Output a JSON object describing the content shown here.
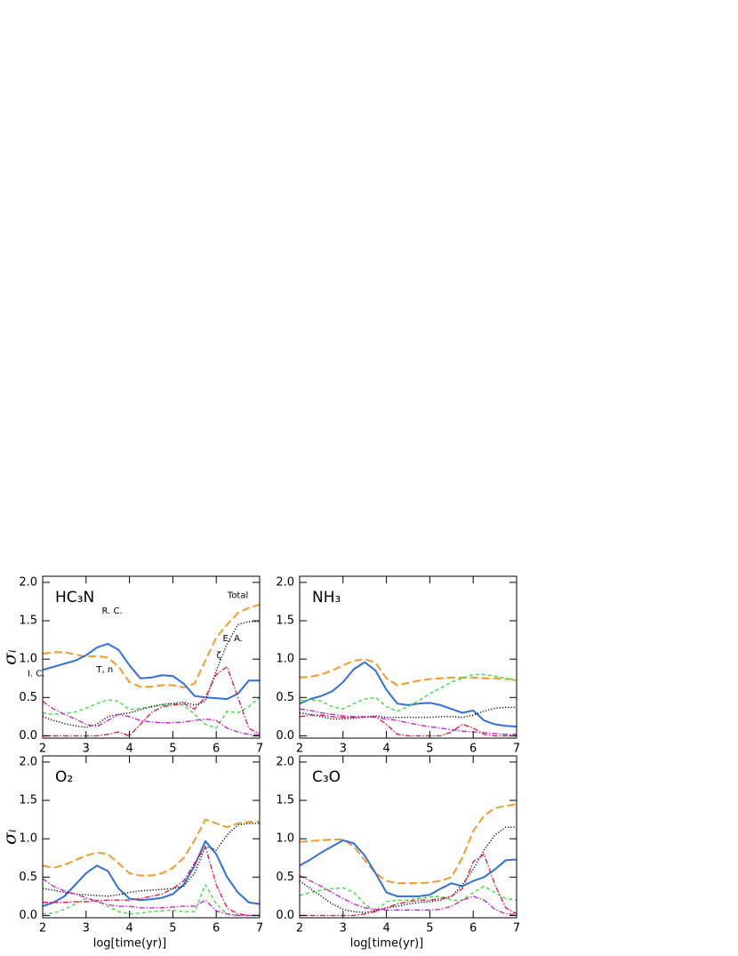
{
  "chart_data": [
    {
      "type": "line",
      "title": "HC₃N",
      "ylabel": "σᵢ",
      "x": [
        2,
        2.25,
        2.5,
        2.75,
        3,
        3.25,
        3.5,
        3.75,
        4,
        4.25,
        4.5,
        4.75,
        5,
        5.25,
        5.5,
        5.75,
        6,
        6.25,
        6.5,
        6.75,
        7
      ],
      "xlim": [
        2,
        7
      ],
      "ylim": [
        -0.03,
        2.08
      ],
      "xticks": [
        2,
        3,
        4,
        5,
        6,
        7
      ],
      "yticks": [
        {
          "value": 0,
          "label": "0.0"
        },
        {
          "value": 0.5,
          "label": "0.5"
        },
        {
          "value": 1,
          "label": "1.0"
        },
        {
          "value": 1.5,
          "label": "1.5"
        },
        {
          "value": 2,
          "label": "2.0"
        }
      ],
      "series": [
        {
          "color": "#f39a2d",
          "linestyle": "dashed",
          "values": [
            1.07,
            1.09,
            1.09,
            1.06,
            1.03,
            1.04,
            1.02,
            0.9,
            0.7,
            0.64,
            0.64,
            0.66,
            0.66,
            0.63,
            0.68,
            0.98,
            1.28,
            1.45,
            1.6,
            1.67,
            1.71
          ]
        },
        {
          "color": "#2f6fde",
          "linestyle": "solid",
          "values": [
            0.86,
            0.9,
            0.94,
            0.98,
            1.05,
            1.15,
            1.2,
            1.12,
            0.92,
            0.75,
            0.76,
            0.79,
            0.78,
            0.68,
            0.52,
            0.5,
            0.49,
            0.48,
            0.55,
            0.72,
            0.72
          ]
        },
        {
          "color": "#3ddc3d",
          "linestyle": "dashed-short",
          "values": [
            0.3,
            0.28,
            0.29,
            0.31,
            0.36,
            0.42,
            0.47,
            0.45,
            0.34,
            0.36,
            0.38,
            0.4,
            0.42,
            0.4,
            0.28,
            0.15,
            0.1,
            0.32,
            0.3,
            0.38,
            0.5
          ]
        },
        {
          "color": "#000000",
          "linestyle": "dotted",
          "values": [
            0.25,
            0.2,
            0.16,
            0.13,
            0.11,
            0.15,
            0.25,
            0.28,
            0.3,
            0.34,
            0.38,
            0.41,
            0.42,
            0.44,
            0.4,
            0.45,
            0.85,
            1.2,
            1.45,
            1.49,
            1.49
          ]
        },
        {
          "color": "#e0204a",
          "linestyle": "dashdot",
          "values": [
            0,
            0,
            0,
            0,
            0,
            0,
            0.02,
            0.05,
            0,
            0.15,
            0.3,
            0.38,
            0.4,
            0.42,
            0.35,
            0.5,
            0.8,
            0.9,
            0.5,
            0.1,
            0.02
          ]
        },
        {
          "color": "#c928d0",
          "linestyle": "dashdot",
          "values": [
            0.45,
            0.35,
            0.28,
            0.22,
            0.15,
            0.12,
            0.2,
            0.28,
            0.25,
            0.2,
            0.18,
            0.17,
            0.17,
            0.18,
            0.2,
            0.22,
            0.2,
            0.1,
            0.05,
            0.02,
            0.01
          ]
        }
      ],
      "annotations": [
        {
          "text": "Total",
          "x": 6.5,
          "y": 1.83
        },
        {
          "text": "R. C.",
          "x": 3.6,
          "y": 1.63
        },
        {
          "text": "T, n",
          "x": 3.43,
          "y": 0.86
        },
        {
          "text": "E. A.",
          "x": 6.38,
          "y": 1.27
        },
        {
          "text": "ζ",
          "x": 6.06,
          "y": 1.05
        },
        {
          "text": "I. C.",
          "x": 1.85,
          "y": 0.81
        }
      ]
    },
    {
      "type": "line",
      "title": "NH₃",
      "x": [
        2,
        2.25,
        2.5,
        2.75,
        3,
        3.25,
        3.5,
        3.75,
        4,
        4.25,
        4.5,
        4.75,
        5,
        5.25,
        5.5,
        5.75,
        6,
        6.25,
        6.5,
        6.75,
        7
      ],
      "xlim": [
        2,
        7
      ],
      "ylim": [
        -0.03,
        2.08
      ],
      "xticks": [
        2,
        3,
        4,
        5,
        6,
        7
      ],
      "yticks": [
        {
          "value": 0,
          "label": "0.0"
        },
        {
          "value": 0.5,
          "label": "0.5"
        },
        {
          "value": 1,
          "label": "1.0"
        },
        {
          "value": 1.5,
          "label": "1.5"
        },
        {
          "value": 2,
          "label": "2.0"
        }
      ],
      "series": [
        {
          "color": "#f39a2d",
          "linestyle": "dashed",
          "values": [
            0.76,
            0.77,
            0.8,
            0.85,
            0.92,
            0.98,
            1.0,
            0.95,
            0.75,
            0.66,
            0.69,
            0.72,
            0.74,
            0.75,
            0.76,
            0.76,
            0.76,
            0.75,
            0.75,
            0.74,
            0.74
          ]
        },
        {
          "color": "#2f6fde",
          "linestyle": "solid",
          "values": [
            0.42,
            0.48,
            0.52,
            0.58,
            0.7,
            0.87,
            0.96,
            0.85,
            0.6,
            0.42,
            0.4,
            0.42,
            0.43,
            0.4,
            0.35,
            0.3,
            0.33,
            0.2,
            0.15,
            0.13,
            0.12
          ]
        },
        {
          "color": "#3ddc3d",
          "linestyle": "dashed-short",
          "values": [
            0.46,
            0.47,
            0.45,
            0.38,
            0.35,
            0.42,
            0.48,
            0.5,
            0.38,
            0.32,
            0.38,
            0.46,
            0.55,
            0.62,
            0.7,
            0.75,
            0.8,
            0.8,
            0.78,
            0.75,
            0.72
          ]
        },
        {
          "color": "#000000",
          "linestyle": "dotted",
          "values": [
            0.3,
            0.28,
            0.25,
            0.22,
            0.22,
            0.23,
            0.24,
            0.26,
            0.24,
            0.24,
            0.24,
            0.24,
            0.24,
            0.25,
            0.25,
            0.24,
            0.27,
            0.32,
            0.36,
            0.37,
            0.37
          ]
        },
        {
          "color": "#e0204a",
          "linestyle": "dashdot",
          "values": [
            0.25,
            0.27,
            0.27,
            0.25,
            0.24,
            0.24,
            0.25,
            0.25,
            0.15,
            0.02,
            0,
            0,
            0,
            0,
            0.05,
            0.15,
            0.1,
            0.02,
            0,
            0,
            0
          ]
        },
        {
          "color": "#c928d0",
          "linestyle": "dashdot",
          "values": [
            0.35,
            0.33,
            0.3,
            0.28,
            0.26,
            0.25,
            0.25,
            0.24,
            0.22,
            0.2,
            0.17,
            0.14,
            0.12,
            0.1,
            0.08,
            0.06,
            0.05,
            0.04,
            0.03,
            0.02,
            0.02
          ]
        }
      ]
    },
    {
      "type": "line",
      "title": "O₂",
      "ylabel": "σᵢ",
      "xlabel": "log[time(yr)]",
      "x": [
        2,
        2.25,
        2.5,
        2.75,
        3,
        3.25,
        3.5,
        3.75,
        4,
        4.25,
        4.5,
        4.75,
        5,
        5.25,
        5.5,
        5.75,
        6,
        6.25,
        6.5,
        6.75,
        7
      ],
      "xlim": [
        2,
        7
      ],
      "ylim": [
        -0.03,
        2.08
      ],
      "xticks": [
        2,
        3,
        4,
        5,
        6,
        7
      ],
      "yticks": [
        {
          "value": 0,
          "label": "0.0"
        },
        {
          "value": 0.5,
          "label": "0.5"
        },
        {
          "value": 1,
          "label": "1.0"
        },
        {
          "value": 1.5,
          "label": "1.5"
        },
        {
          "value": 2,
          "label": "2.0"
        }
      ],
      "series": [
        {
          "color": "#f39a2d",
          "linestyle": "dashed",
          "values": [
            0.65,
            0.62,
            0.66,
            0.72,
            0.78,
            0.82,
            0.8,
            0.68,
            0.55,
            0.52,
            0.52,
            0.55,
            0.62,
            0.75,
            0.98,
            1.25,
            1.2,
            1.15,
            1.2,
            1.22,
            1.22
          ]
        },
        {
          "color": "#2f6fde",
          "linestyle": "solid",
          "values": [
            0.12,
            0.17,
            0.25,
            0.4,
            0.55,
            0.65,
            0.58,
            0.35,
            0.22,
            0.2,
            0.21,
            0.23,
            0.28,
            0.4,
            0.65,
            0.97,
            0.8,
            0.5,
            0.3,
            0.17,
            0.15
          ]
        },
        {
          "color": "#3ddc3d",
          "linestyle": "dashed-short",
          "values": [
            0.02,
            0.03,
            0.08,
            0.15,
            0.22,
            0.2,
            0.12,
            0.05,
            0.02,
            0.03,
            0.05,
            0.06,
            0.07,
            0.05,
            0.05,
            0.4,
            0.15,
            0.02,
            0,
            0,
            0
          ]
        },
        {
          "color": "#000000",
          "linestyle": "dotted",
          "values": [
            0.35,
            0.33,
            0.3,
            0.28,
            0.27,
            0.26,
            0.25,
            0.27,
            0.3,
            0.32,
            0.33,
            0.34,
            0.35,
            0.38,
            0.55,
            0.9,
            0.85,
            1.05,
            1.18,
            1.2,
            1.2
          ]
        },
        {
          "color": "#e0204a",
          "linestyle": "dashdot",
          "values": [
            0.17,
            0.17,
            0.17,
            0.18,
            0.18,
            0.19,
            0.2,
            0.2,
            0.2,
            0.22,
            0.25,
            0.28,
            0.35,
            0.45,
            0.68,
            0.9,
            0.4,
            0.1,
            0.02,
            0,
            0
          ]
        },
        {
          "color": "#c928d0",
          "linestyle": "dashdot",
          "values": [
            0.48,
            0.38,
            0.32,
            0.28,
            0.23,
            0.18,
            0.14,
            0.12,
            0.12,
            0.1,
            0.1,
            0.1,
            0.11,
            0.12,
            0.12,
            0.2,
            0.06,
            0.02,
            0,
            0,
            0
          ]
        }
      ]
    },
    {
      "type": "line",
      "title": "C₃O",
      "xlabel": "log[time(yr)]",
      "x": [
        2,
        2.25,
        2.5,
        2.75,
        3,
        3.25,
        3.5,
        3.75,
        4,
        4.25,
        4.5,
        4.75,
        5,
        5.25,
        5.5,
        5.75,
        6,
        6.25,
        6.5,
        6.75,
        7
      ],
      "xlim": [
        2,
        7
      ],
      "ylim": [
        -0.03,
        2.08
      ],
      "xticks": [
        2,
        3,
        4,
        5,
        6,
        7
      ],
      "yticks": [
        {
          "value": 0,
          "label": "0.0"
        },
        {
          "value": 0.5,
          "label": "0.5"
        },
        {
          "value": 1,
          "label": "1.0"
        },
        {
          "value": 1.5,
          "label": "1.5"
        },
        {
          "value": 2,
          "label": "2.0"
        }
      ],
      "series": [
        {
          "color": "#f39a2d",
          "linestyle": "dashed",
          "values": [
            0.96,
            0.97,
            0.98,
            0.99,
            0.99,
            0.9,
            0.72,
            0.55,
            0.45,
            0.42,
            0.42,
            0.42,
            0.43,
            0.45,
            0.5,
            0.75,
            1.1,
            1.3,
            1.4,
            1.43,
            1.45
          ]
        },
        {
          "color": "#2f6fde",
          "linestyle": "solid",
          "values": [
            0.65,
            0.73,
            0.82,
            0.9,
            0.98,
            0.94,
            0.78,
            0.55,
            0.3,
            0.25,
            0.25,
            0.25,
            0.27,
            0.35,
            0.42,
            0.38,
            0.45,
            0.5,
            0.6,
            0.72,
            0.73
          ]
        },
        {
          "color": "#3ddc3d",
          "linestyle": "dashed-short",
          "values": [
            0.26,
            0.3,
            0.33,
            0.35,
            0.36,
            0.3,
            0.15,
            0.05,
            0.18,
            0.2,
            0.2,
            0.22,
            0.24,
            0.25,
            0.2,
            0.2,
            0.3,
            0.38,
            0.3,
            0.22,
            0.2
          ]
        },
        {
          "color": "#000000",
          "linestyle": "dotted",
          "values": [
            0.45,
            0.35,
            0.25,
            0.15,
            0.08,
            0.05,
            0.04,
            0.06,
            0.1,
            0.12,
            0.15,
            0.17,
            0.18,
            0.2,
            0.25,
            0.4,
            0.6,
            0.85,
            1.05,
            1.15,
            1.15
          ]
        },
        {
          "color": "#e0204a",
          "linestyle": "dashdot",
          "values": [
            0,
            0,
            0,
            0,
            0,
            0,
            0.02,
            0.05,
            0.1,
            0.15,
            0.18,
            0.2,
            0.2,
            0.22,
            0.25,
            0.35,
            0.7,
            0.8,
            0.4,
            0.1,
            0.02
          ]
        },
        {
          "color": "#c928d0",
          "linestyle": "dashdot",
          "values": [
            0.52,
            0.45,
            0.38,
            0.3,
            0.22,
            0.15,
            0.1,
            0.08,
            0.07,
            0.07,
            0.07,
            0.07,
            0.07,
            0.08,
            0.12,
            0.2,
            0.25,
            0.2,
            0.08,
            0.02,
            0.01
          ]
        }
      ]
    }
  ]
}
